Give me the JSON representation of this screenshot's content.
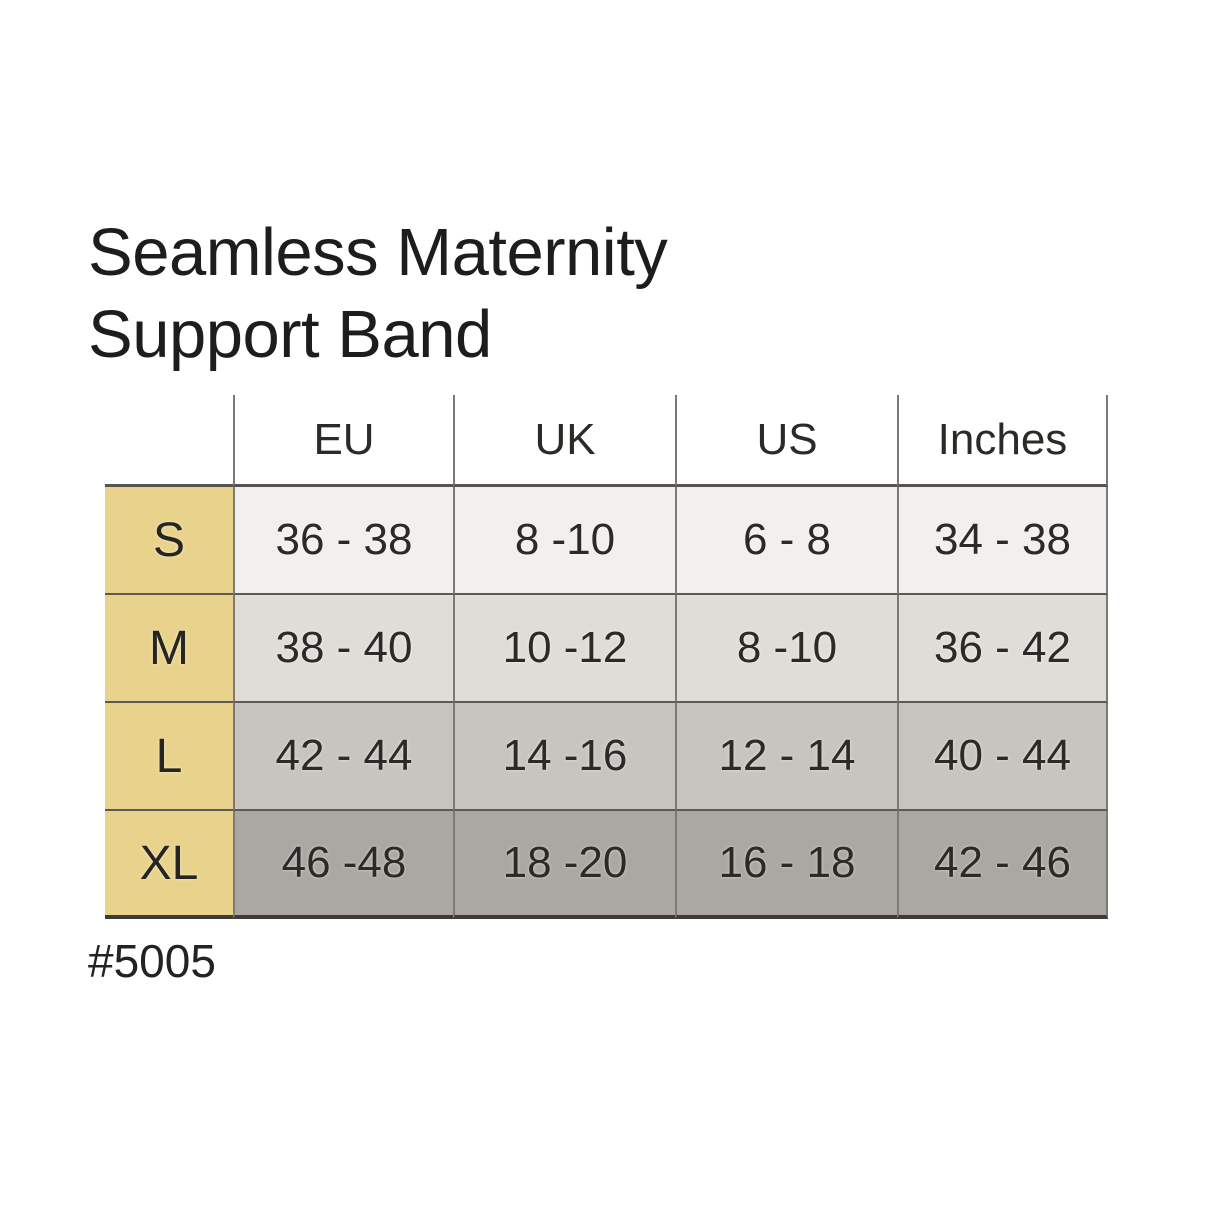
{
  "title": {
    "line1": "Seamless Maternity",
    "line2": "Support Band"
  },
  "product_code": "#5005",
  "chart_data": {
    "type": "table",
    "title": "Seamless Maternity Support Band",
    "columns": [
      "EU",
      "UK",
      "US",
      "Inches"
    ],
    "row_labels": [
      "S",
      "M",
      "L",
      "XL"
    ],
    "rows": [
      {
        "size": "S",
        "eu": "36 - 38",
        "uk": "8 -10",
        "us": "6 - 8",
        "inches": "34 - 38"
      },
      {
        "size": "M",
        "eu": "38 - 40",
        "uk": "10 -12",
        "us": "8 -10",
        "inches": "36 - 42"
      },
      {
        "size": "L",
        "eu": "42 - 44",
        "uk": "14 -16",
        "us": "12 - 14",
        "inches": "40 - 44"
      },
      {
        "size": "XL",
        "eu": "46 -48",
        "uk": "18 -20",
        "us": "16 - 18",
        "inches": "42 - 46"
      }
    ],
    "colors": {
      "size_column": "#e9d38c",
      "row_s": "#f1f0ee",
      "row_m": "#e0ddd9",
      "row_l": "#c8c5c1",
      "row_xl": "#aba7a3",
      "grid_line_vertical": "#7d7a76",
      "grid_line_horizontal": "#5d5955",
      "header_bottom_line": "#57534f",
      "table_bottom_line": "#3d3a37",
      "text": "#2b2a27"
    }
  }
}
